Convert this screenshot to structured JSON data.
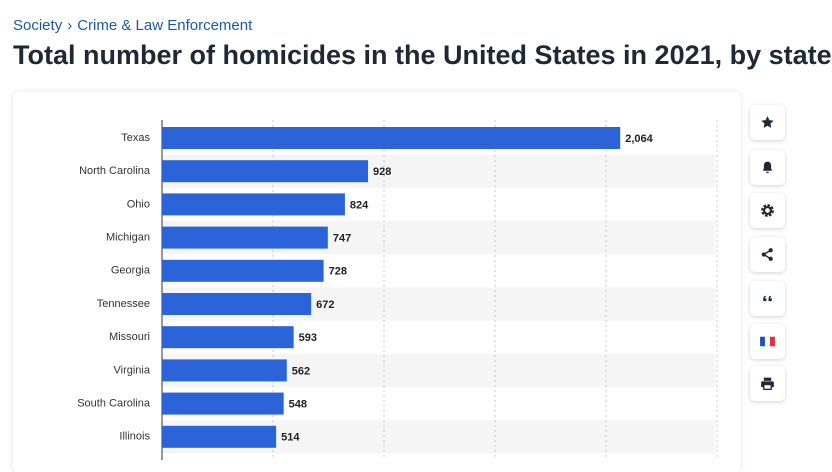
{
  "breadcrumb": {
    "items": [
      "Society",
      "Crime & Law Enforcement"
    ],
    "separator": "›"
  },
  "chart_data": {
    "type": "hbar",
    "title": "Total number of homicides in the United States in 2021, by state",
    "categories": [
      "Texas",
      "North Carolina",
      "Ohio",
      "Michigan",
      "Georgia",
      "Tennessee",
      "Missouri",
      "Virginia",
      "South Carolina",
      "Illinois"
    ],
    "values": [
      2064,
      928,
      824,
      747,
      728,
      672,
      593,
      562,
      548,
      514
    ],
    "value_labels": [
      "2,064",
      "928",
      "824",
      "747",
      "728",
      "672",
      "593",
      "562",
      "548",
      "514"
    ],
    "color": "#2a64d8",
    "xlim": [
      0,
      2500
    ],
    "xticks": [
      0,
      500,
      1000,
      1500,
      2000,
      2500
    ],
    "grid": true
  }
}
